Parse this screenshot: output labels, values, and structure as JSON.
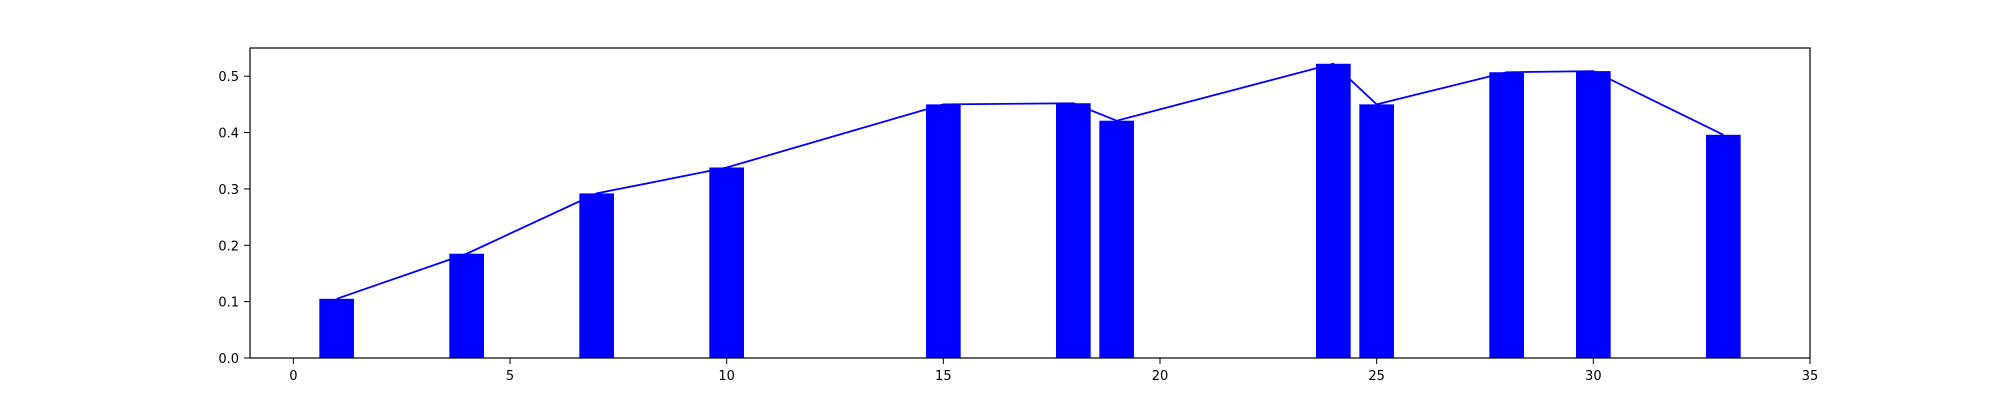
{
  "chart_data": {
    "type": "bar",
    "xlim": [
      -1,
      35
    ],
    "ylim": [
      0,
      0.55
    ],
    "x_ticks": [
      0,
      5,
      10,
      15,
      20,
      25,
      30,
      35
    ],
    "y_ticks": [
      0.0,
      0.1,
      0.2,
      0.3,
      0.4,
      0.5
    ],
    "x_tick_labels": [
      "0",
      "5",
      "10",
      "15",
      "20",
      "25",
      "30",
      "35"
    ],
    "y_tick_labels": [
      "0.0",
      "0.1",
      "0.2",
      "0.3",
      "0.4",
      "0.5"
    ],
    "bar_width": 0.8,
    "series": [
      {
        "x": [
          1,
          4,
          7,
          10,
          15,
          18,
          19,
          24,
          25,
          28,
          30,
          33
        ],
        "values": [
          0.105,
          0.185,
          0.292,
          0.338,
          0.45,
          0.452,
          0.421,
          0.522,
          0.45,
          0.507,
          0.509,
          0.396
        ],
        "color": "#0000ff",
        "style": "bars with connecting line"
      }
    ],
    "grid": false,
    "title": "",
    "xlabel": "",
    "ylabel": ""
  }
}
